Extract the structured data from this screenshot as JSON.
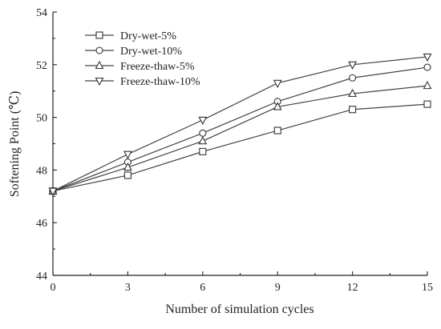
{
  "chart_data": {
    "type": "line",
    "xlabel": "Number of simulation cycles",
    "ylabel": "Softening Point (℃)",
    "xlim": [
      0,
      15
    ],
    "ylim": [
      44,
      54
    ],
    "xticks": [
      0,
      3,
      6,
      9,
      12,
      15
    ],
    "yticks": [
      44,
      46,
      48,
      50,
      52,
      54
    ],
    "grid": false,
    "legend_position": "top-left",
    "x": [
      0,
      3,
      6,
      9,
      12,
      15
    ],
    "series": [
      {
        "name": "Dry-wet-5%",
        "marker": "square",
        "values": [
          47.2,
          47.8,
          48.7,
          49.5,
          50.3,
          50.5
        ]
      },
      {
        "name": "Dry-wet-10%",
        "marker": "circle",
        "values": [
          47.2,
          48.3,
          49.4,
          50.6,
          51.5,
          51.9
        ]
      },
      {
        "name": "Freeze-thaw-5%",
        "marker": "triangle-up",
        "values": [
          47.2,
          48.1,
          49.1,
          50.4,
          50.9,
          51.2
        ]
      },
      {
        "name": "Freeze-thaw-10%",
        "marker": "triangle-down",
        "values": [
          47.2,
          48.6,
          49.9,
          51.3,
          52.0,
          52.3
        ]
      }
    ]
  }
}
